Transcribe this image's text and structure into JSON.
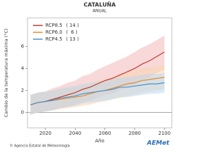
{
  "chart_data": {
    "type": "line",
    "title": "CATALUÑA",
    "subtitle": "ANUAL",
    "x_label": "Año",
    "y_label": "Cambio de la temperatura máxima (°C)",
    "x": [
      2010,
      2015,
      2020,
      2025,
      2030,
      2035,
      2040,
      2045,
      2050,
      2055,
      2060,
      2065,
      2070,
      2075,
      2080,
      2085,
      2090,
      2095,
      2100
    ],
    "xlim": [
      2008,
      2105
    ],
    "xticks": [
      2020,
      2040,
      2060,
      2080,
      2100
    ],
    "ylim": [
      -1.4,
      8.6
    ],
    "yticks": [
      0,
      2,
      4,
      6
    ],
    "series": [
      {
        "name": "RCP8.5",
        "note": "( 14 )",
        "color": "#c0392b",
        "band_color": "#f2b8b8",
        "values": [
          0.7,
          0.9,
          1.0,
          1.2,
          1.4,
          1.6,
          1.8,
          2.1,
          2.3,
          2.6,
          2.9,
          3.1,
          3.4,
          3.7,
          4.0,
          4.4,
          4.7,
          5.1,
          5.5
        ],
        "lower": [
          -0.2,
          0.0,
          0.1,
          0.2,
          0.4,
          0.5,
          0.7,
          0.9,
          1.1,
          1.3,
          1.6,
          1.7,
          2.0,
          2.3,
          2.5,
          2.9,
          3.2,
          3.6,
          3.9
        ],
        "upper": [
          1.6,
          1.8,
          1.9,
          2.2,
          2.4,
          2.7,
          2.9,
          3.3,
          3.5,
          3.9,
          4.2,
          4.5,
          4.8,
          5.1,
          5.5,
          5.9,
          6.2,
          6.6,
          7.0
        ]
      },
      {
        "name": "RCP6.0",
        "note": "(  6 )",
        "color": "#e08a2c",
        "band_color": "#f7d6b0",
        "values": [
          0.7,
          0.9,
          1.0,
          1.1,
          1.2,
          1.3,
          1.4,
          1.5,
          1.7,
          1.9,
          2.0,
          2.2,
          2.4,
          2.6,
          2.7,
          2.9,
          3.0,
          3.1,
          3.2
        ],
        "lower": [
          -0.2,
          0.0,
          0.1,
          0.2,
          0.3,
          0.4,
          0.5,
          0.6,
          0.7,
          0.9,
          1.0,
          1.2,
          1.3,
          1.5,
          1.6,
          1.8,
          1.9,
          2.0,
          2.1
        ],
        "upper": [
          1.6,
          1.8,
          1.9,
          2.0,
          2.1,
          2.2,
          2.3,
          2.4,
          2.7,
          2.9,
          3.0,
          3.2,
          3.5,
          3.7,
          3.8,
          4.0,
          4.1,
          4.2,
          4.3
        ]
      },
      {
        "name": "RCP4.5",
        "note": "( 13 )",
        "color": "#4a90c8",
        "band_color": "#bcd8ee",
        "values": [
          0.7,
          0.9,
          1.0,
          1.1,
          1.3,
          1.4,
          1.5,
          1.7,
          1.8,
          1.9,
          2.0,
          2.1,
          2.3,
          2.3,
          2.4,
          2.5,
          2.6,
          2.6,
          2.7
        ],
        "lower": [
          -0.2,
          0.0,
          0.1,
          0.2,
          0.4,
          0.5,
          0.6,
          0.8,
          0.9,
          1.0,
          1.1,
          1.2,
          1.4,
          1.4,
          1.5,
          1.6,
          1.7,
          1.7,
          1.8
        ],
        "upper": [
          1.6,
          1.8,
          1.9,
          2.0,
          2.2,
          2.3,
          2.4,
          2.6,
          2.7,
          2.8,
          2.9,
          3.0,
          3.2,
          3.2,
          3.3,
          3.4,
          3.5,
          3.5,
          3.6
        ]
      }
    ],
    "zero_line": true
  },
  "footer": {
    "agency": "© Agencia Estatal de Meteorología",
    "logo": "AEMet"
  }
}
